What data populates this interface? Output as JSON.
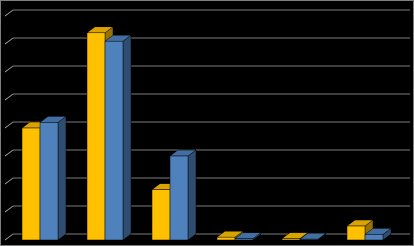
{
  "chart_data": {
    "type": "bar3d",
    "categories": [
      null,
      null,
      null,
      null,
      null,
      null
    ],
    "series": [
      {
        "color": "#ffc000",
        "values": [
          4.0,
          7.4,
          1.8,
          0.1,
          0.05,
          0.5
        ]
      },
      {
        "color": "#4f81bd",
        "values": [
          4.2,
          7.1,
          3.0,
          0.05,
          0.03,
          0.2
        ]
      }
    ],
    "ylim": [
      0,
      8.5
    ],
    "yticks": [
      0,
      1,
      2,
      3,
      4,
      5,
      6,
      7,
      8
    ],
    "grid": true
  }
}
